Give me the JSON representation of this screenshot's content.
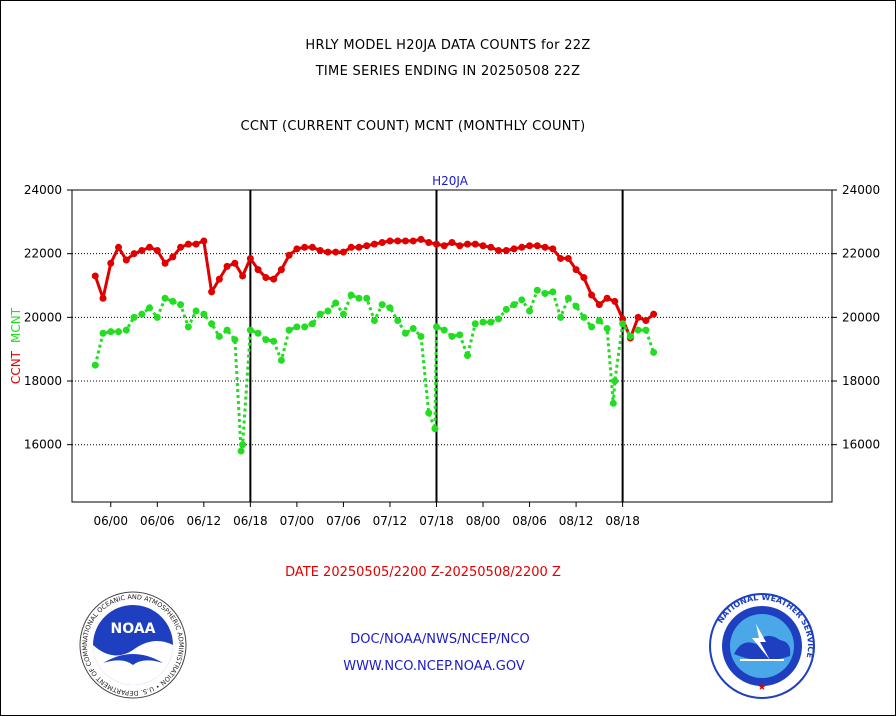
{
  "titles": {
    "line1": "HRLY MODEL H20JA DATA COUNTS for 22Z",
    "line2": "TIME SERIES ENDING IN 20250508 22Z",
    "line3": "CCNT (CURRENT COUNT) MCNT (MONTHLY COUNT)"
  },
  "footer": {
    "date_range": "DATE 20250505/2200 Z-20250508/2200 Z",
    "org_path": "DOC/NOAA/NWS/NCEP/NCO",
    "website": "WWW.NCO.NCEP.NOAA.GOV"
  },
  "logos": {
    "left": {
      "icon": "noaa-logo",
      "text": "NOAA",
      "ring_text": "NATIONAL OCEANIC AND ATMOSPHERIC ADMINISTRATION • U.S. DEPARTMENT OF COMMERCE"
    },
    "right": {
      "icon": "nws-logo",
      "ring_text": "NATIONAL WEATHER SERVICE"
    }
  },
  "chart_data": {
    "type": "line",
    "title": "H20JA",
    "ylabel_parts": [
      {
        "text": "CCNT",
        "color": "#e00000"
      },
      {
        "text": "MCNT",
        "color": "#22dd22"
      }
    ],
    "ylim": [
      14200,
      24000
    ],
    "yticks": [
      16000,
      18000,
      20000,
      22000,
      24000
    ],
    "y_tick_labels": [
      "16000",
      "18000",
      "20000",
      "22000",
      "24000"
    ],
    "y_gridlines": [
      16000,
      18000,
      20000,
      22000
    ],
    "xlim": [
      -5,
      93
    ],
    "xticks": [
      {
        "x": 0,
        "label": "06/00"
      },
      {
        "x": 6,
        "label": "06/06"
      },
      {
        "x": 12,
        "label": "06/12"
      },
      {
        "x": 18,
        "label": "06/18"
      },
      {
        "x": 24,
        "label": "07/00"
      },
      {
        "x": 30,
        "label": "07/06"
      },
      {
        "x": 36,
        "label": "07/12"
      },
      {
        "x": 42,
        "label": "07/18"
      },
      {
        "x": 48,
        "label": "08/00"
      },
      {
        "x": 54,
        "label": "08/06"
      },
      {
        "x": 60,
        "label": "08/12"
      },
      {
        "x": 66,
        "label": "08/18"
      }
    ],
    "vertical_lines": [
      18,
      42,
      66
    ],
    "series": [
      {
        "name": "CCNT",
        "color": "#e00000",
        "line_style": "solid",
        "x": [
          -2,
          -1,
          0,
          1,
          2,
          3,
          4,
          5,
          6,
          7,
          8,
          9,
          10,
          11,
          12,
          13,
          14,
          15,
          16,
          17,
          18,
          19,
          20,
          21,
          22,
          23,
          24,
          25,
          26,
          27,
          28,
          29,
          30,
          31,
          32,
          33,
          34,
          35,
          36,
          37,
          38,
          39,
          40,
          41,
          42,
          43,
          44,
          45,
          46,
          47,
          48,
          49,
          50,
          51,
          52,
          53,
          54,
          55,
          56,
          57,
          58,
          59,
          60,
          61,
          62,
          63,
          64,
          65,
          66,
          67,
          68,
          69,
          70
        ],
        "values": [
          21300,
          20600,
          21700,
          22200,
          21800,
          22000,
          22100,
          22200,
          22100,
          21700,
          21900,
          22200,
          22300,
          22300,
          22400,
          20800,
          21200,
          21600,
          21700,
          21300,
          21850,
          21500,
          21250,
          21200,
          21500,
          21950,
          22150,
          22200,
          22200,
          22100,
          22050,
          22050,
          22050,
          22200,
          22200,
          22250,
          22300,
          22350,
          22400,
          22400,
          22400,
          22400,
          22450,
          22350,
          22300,
          22250,
          22350,
          22250,
          22300,
          22300,
          22250,
          22200,
          22100,
          22100,
          22150,
          22200,
          22250,
          22250,
          22200,
          22150,
          21850,
          21850,
          21500,
          21250,
          20700,
          20400,
          20600,
          20500,
          19950,
          19350,
          20000,
          19900,
          20100
        ]
      },
      {
        "name": "MCNT",
        "color": "#22dd22",
        "line_style": "dotted",
        "x": [
          -2,
          -1,
          0,
          1,
          2,
          3,
          4,
          5,
          6,
          7,
          8,
          9,
          10,
          11,
          12,
          13,
          14,
          15,
          16,
          16.8,
          17,
          18,
          19,
          20,
          21,
          22,
          23,
          24,
          25,
          26,
          27,
          28,
          29,
          30,
          31,
          32,
          33,
          34,
          35,
          36,
          37,
          38,
          39,
          40,
          41,
          41.8,
          42,
          43,
          44,
          45,
          46,
          47,
          48,
          49,
          50,
          51,
          52,
          53,
          54,
          55,
          56,
          57,
          58,
          59,
          60,
          61,
          62,
          63,
          64,
          64.8,
          65,
          66,
          67,
          68,
          69,
          70
        ],
        "values": [
          18500,
          19500,
          19550,
          19550,
          19600,
          20000,
          20100,
          20300,
          20000,
          20600,
          20500,
          20400,
          19700,
          20200,
          20100,
          19800,
          19400,
          19600,
          19300,
          15800,
          16000,
          19600,
          19500,
          19300,
          19250,
          18650,
          19600,
          19700,
          19700,
          19800,
          20100,
          20200,
          20450,
          20100,
          20700,
          20600,
          20600,
          19900,
          20400,
          20300,
          19900,
          19500,
          19650,
          19400,
          17000,
          16500,
          19700,
          19600,
          19400,
          19450,
          18800,
          19800,
          19850,
          19850,
          19950,
          20250,
          20400,
          20550,
          20200,
          20850,
          20750,
          20800,
          20000,
          20600,
          20350,
          20000,
          19700,
          19900,
          19650,
          17300,
          18000,
          19800,
          19400,
          19600,
          19600,
          18900
        ]
      }
    ]
  }
}
